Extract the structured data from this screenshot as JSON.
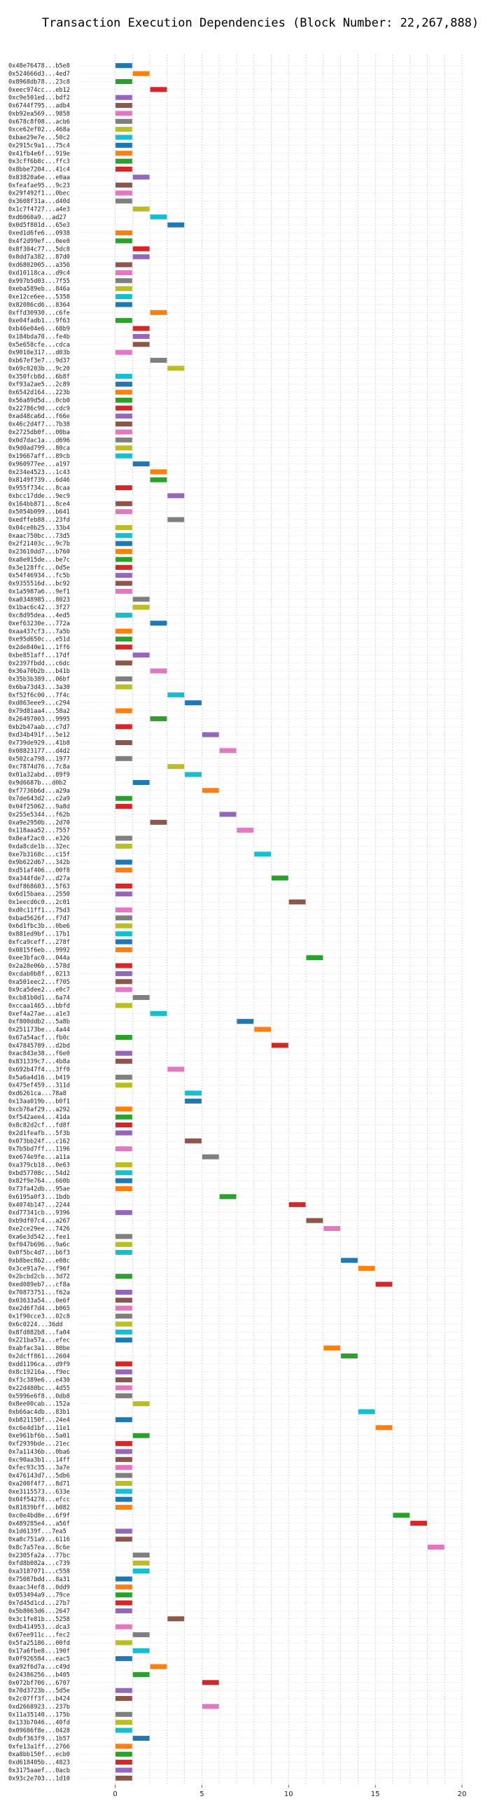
{
  "chart_data": {
    "type": "bar",
    "orientation": "horizontal-timeline",
    "title": "Transaction Execution Dependencies (Block Number: 22,267,888)",
    "xlabel": "",
    "ylabel": "",
    "xlim": [
      -2,
      20
    ],
    "xticks": [
      0,
      5,
      10,
      15,
      20
    ],
    "grid": "dotted, both axes",
    "legend": "none",
    "palette": [
      "#1f77b4",
      "#ff7f0e",
      "#2ca02c",
      "#d62728",
      "#9467bd",
      "#8c564b",
      "#e377c2",
      "#7f7f7f",
      "#bcbd22",
      "#17becf"
    ],
    "rows": [
      {
        "tx": "0x48e76478...b5e8",
        "start": 0,
        "end": 1
      },
      {
        "tx": "0x524666d3...4ed7",
        "start": 1,
        "end": 2
      },
      {
        "tx": "0x8968db78...23c8",
        "start": 0,
        "end": 1
      },
      {
        "tx": "0xeec974cc...eb12",
        "start": 2,
        "end": 3
      },
      {
        "tx": "0xc9e501ed...bdf2",
        "start": 0,
        "end": 1
      },
      {
        "tx": "0x6744f795...adb4",
        "start": 0,
        "end": 1
      },
      {
        "tx": "0xb92ea569...9858",
        "start": 0,
        "end": 1
      },
      {
        "tx": "0x678c8f08...acb6",
        "start": 0,
        "end": 1
      },
      {
        "tx": "0xce62ef02...468a",
        "start": 0,
        "end": 1
      },
      {
        "tx": "0xbae29e7e...50c2",
        "start": 0,
        "end": 1
      },
      {
        "tx": "0x2915c9a1...75c4",
        "start": 0,
        "end": 1
      },
      {
        "tx": "0x41fb4e6f...919e",
        "start": 0,
        "end": 1
      },
      {
        "tx": "0x3cff6b8c...ffc3",
        "start": 0,
        "end": 1
      },
      {
        "tx": "0x8bbe7204...41c4",
        "start": 0,
        "end": 1
      },
      {
        "tx": "0x83820a6e...e0aa",
        "start": 1,
        "end": 2
      },
      {
        "tx": "0xfeafae95...9c23",
        "start": 0,
        "end": 1
      },
      {
        "tx": "0x29f492f1...0bec",
        "start": 0,
        "end": 1
      },
      {
        "tx": "0x3608f31a...d40d",
        "start": 0,
        "end": 1
      },
      {
        "tx": "0x1c7f4727...a4e3",
        "start": 1,
        "end": 2
      },
      {
        "tx": "0xd6060a9...ad27",
        "start": 2,
        "end": 3
      },
      {
        "tx": "0x0d5f801d...65e3",
        "start": 3,
        "end": 4
      },
      {
        "tx": "0xed1d6fe6...0938",
        "start": 0,
        "end": 1
      },
      {
        "tx": "0x4f2d99ef...0ee0",
        "start": 0,
        "end": 1
      },
      {
        "tx": "0x8f304c77...5dc8",
        "start": 1,
        "end": 2
      },
      {
        "tx": "0x8dd7a382...87d0",
        "start": 1,
        "end": 2
      },
      {
        "tx": "0xd6802005...a356",
        "start": 0,
        "end": 1
      },
      {
        "tx": "0xd10118ca...d9c4",
        "start": 0,
        "end": 1
      },
      {
        "tx": "0x997b5d03...7f55",
        "start": 0,
        "end": 1
      },
      {
        "tx": "0xeba589eb...846a",
        "start": 0,
        "end": 1
      },
      {
        "tx": "0xe12ce6ee...5358",
        "start": 0,
        "end": 1
      },
      {
        "tx": "0x82086cd6...8364",
        "start": 0,
        "end": 1
      },
      {
        "tx": "0xffd30930...c6fe",
        "start": 2,
        "end": 3
      },
      {
        "tx": "0xe04fadb1...9f63",
        "start": 0,
        "end": 1
      },
      {
        "tx": "0xb46e04e6...68b9",
        "start": 1,
        "end": 2
      },
      {
        "tx": "0x184bda70...fe4b",
        "start": 1,
        "end": 2
      },
      {
        "tx": "0x5e658cfe...cdca",
        "start": 1,
        "end": 2
      },
      {
        "tx": "0x9010e317...d03b",
        "start": 0,
        "end": 1
      },
      {
        "tx": "0xb67ef3e7...9d37",
        "start": 2,
        "end": 3
      },
      {
        "tx": "0x69c0203b...9c20",
        "start": 3,
        "end": 4
      },
      {
        "tx": "0x350fcb8d...6b8f",
        "start": 0,
        "end": 1
      },
      {
        "tx": "0xf93a2ae5...2c89",
        "start": 0,
        "end": 1
      },
      {
        "tx": "0x6542d164...223b",
        "start": 0,
        "end": 1
      },
      {
        "tx": "0x56a89d5d...0cb0",
        "start": 0,
        "end": 1
      },
      {
        "tx": "0x22786c90...cdc9",
        "start": 0,
        "end": 1
      },
      {
        "tx": "0xad48ca6d...f66e",
        "start": 0,
        "end": 1
      },
      {
        "tx": "0x46c2d4f7...7b38",
        "start": 0,
        "end": 1
      },
      {
        "tx": "0x2725db0f...00ba",
        "start": 0,
        "end": 1
      },
      {
        "tx": "0x0d7dac1a...d696",
        "start": 0,
        "end": 1
      },
      {
        "tx": "0x9d0ad799...80ca",
        "start": 0,
        "end": 1
      },
      {
        "tx": "0x19667aff...89cb",
        "start": 0,
        "end": 1
      },
      {
        "tx": "0x960977ee...a197",
        "start": 1,
        "end": 2
      },
      {
        "tx": "0x234e4523...1c43",
        "start": 2,
        "end": 3
      },
      {
        "tx": "0x8149f739...6d46",
        "start": 2,
        "end": 3
      },
      {
        "tx": "0x955f734c...8caa",
        "start": 0,
        "end": 1
      },
      {
        "tx": "0xbcc17dde...9ec9",
        "start": 3,
        "end": 4
      },
      {
        "tx": "0x164bb871...8ce4",
        "start": 0,
        "end": 1
      },
      {
        "tx": "0x5054b099...b641",
        "start": 0,
        "end": 1
      },
      {
        "tx": "0xedffeb88...23fd",
        "start": 3,
        "end": 4
      },
      {
        "tx": "0x04ce0b25...33b4",
        "start": 0,
        "end": 1
      },
      {
        "tx": "0xaac750bc...73d5",
        "start": 0,
        "end": 1
      },
      {
        "tx": "0x2f21403c...9c7b",
        "start": 0,
        "end": 1
      },
      {
        "tx": "0x23610dd7...b760",
        "start": 0,
        "end": 1
      },
      {
        "tx": "0xa8e015de...be7c",
        "start": 0,
        "end": 1
      },
      {
        "tx": "0x3e128ffc...0d5e",
        "start": 0,
        "end": 1
      },
      {
        "tx": "0x54f46934...fc5b",
        "start": 0,
        "end": 1
      },
      {
        "tx": "0x9355516d...bc92",
        "start": 0,
        "end": 1
      },
      {
        "tx": "0x1a5987a6...9ef1",
        "start": 0,
        "end": 1
      },
      {
        "tx": "0xa0348985...8023",
        "start": 1,
        "end": 2
      },
      {
        "tx": "0x1bac6c42...3f27",
        "start": 1,
        "end": 2
      },
      {
        "tx": "0xc8d95dea...4ed5",
        "start": 0,
        "end": 1
      },
      {
        "tx": "0xef63230e...772a",
        "start": 2,
        "end": 3
      },
      {
        "tx": "0xaa437cf3...7a5b",
        "start": 0,
        "end": 1
      },
      {
        "tx": "0xe95d650c...e51d",
        "start": 0,
        "end": 1
      },
      {
        "tx": "0x2de840e1...1ff6",
        "start": 0,
        "end": 1
      },
      {
        "tx": "0xbe851aff...17df",
        "start": 1,
        "end": 2
      },
      {
        "tx": "0x2397fbdd...c6dc",
        "start": 0,
        "end": 1
      },
      {
        "tx": "0x36a70b2b...b41b",
        "start": 2,
        "end": 3
      },
      {
        "tx": "0x35b3b389...06bf",
        "start": 0,
        "end": 1
      },
      {
        "tx": "0x6ba73d43...3a30",
        "start": 0,
        "end": 1
      },
      {
        "tx": "0xf52f6c00...7f4c",
        "start": 3,
        "end": 4
      },
      {
        "tx": "0xd863eee9...c294",
        "start": 4,
        "end": 5
      },
      {
        "tx": "0x79d81aa4...58a2",
        "start": 0,
        "end": 1
      },
      {
        "tx": "0x26497003...9995",
        "start": 2,
        "end": 3
      },
      {
        "tx": "0xb2b47aab...c7d7",
        "start": 0,
        "end": 1
      },
      {
        "tx": "0xd34b491f...5e12",
        "start": 5,
        "end": 6
      },
      {
        "tx": "0x739de929...41b8",
        "start": 0,
        "end": 1
      },
      {
        "tx": "0x08823177...d4d2",
        "start": 6,
        "end": 7
      },
      {
        "tx": "0x502ca798...1977",
        "start": 0,
        "end": 1
      },
      {
        "tx": "0xc7874d76...7c8a",
        "start": 3,
        "end": 4
      },
      {
        "tx": "0x01a32abd...89f9",
        "start": 4,
        "end": 5
      },
      {
        "tx": "0x9d6687b...d0b2",
        "start": 1,
        "end": 2
      },
      {
        "tx": "0xf7736b6d...a29a",
        "start": 5,
        "end": 6
      },
      {
        "tx": "0x7de643d2...c2a9",
        "start": 0,
        "end": 1
      },
      {
        "tx": "0x04f25062...9a8d",
        "start": 0,
        "end": 1
      },
      {
        "tx": "0x255e5344...f62b",
        "start": 6,
        "end": 7
      },
      {
        "tx": "0xa9e2950b...2d70",
        "start": 2,
        "end": 3
      },
      {
        "tx": "0x118aaa52...7557",
        "start": 7,
        "end": 8
      },
      {
        "tx": "0x8eaf2ac0...e326",
        "start": 0,
        "end": 1
      },
      {
        "tx": "0xda8cde1b...32ec",
        "start": 0,
        "end": 1
      },
      {
        "tx": "0xe7b3168c...c15f",
        "start": 8,
        "end": 9
      },
      {
        "tx": "0x9b622d67...342b",
        "start": 0,
        "end": 1
      },
      {
        "tx": "0xd51af406...00f8",
        "start": 0,
        "end": 1
      },
      {
        "tx": "0xa344fde7...d27a",
        "start": 9,
        "end": 10
      },
      {
        "tx": "0xdf868603...5f63",
        "start": 0,
        "end": 1
      },
      {
        "tx": "0x6d15baea...2550",
        "start": 0,
        "end": 1
      },
      {
        "tx": "0x1eecd6c0...2c01",
        "start": 10,
        "end": 11
      },
      {
        "tx": "0xd0c11ff1...75d3",
        "start": 0,
        "end": 1
      },
      {
        "tx": "0xbad5626f...f7d7",
        "start": 0,
        "end": 1
      },
      {
        "tx": "0x6d1fbc3b...0be6",
        "start": 0,
        "end": 1
      },
      {
        "tx": "0x881ed9bf...17b1",
        "start": 0,
        "end": 1
      },
      {
        "tx": "0xfca9ceff...278f",
        "start": 0,
        "end": 1
      },
      {
        "tx": "0x0815f6eb...9992",
        "start": 0,
        "end": 1
      },
      {
        "tx": "0xee3bfac0...044a",
        "start": 11,
        "end": 12
      },
      {
        "tx": "0x2a28e06b...578d",
        "start": 0,
        "end": 1
      },
      {
        "tx": "0xcdab0b8f...0213",
        "start": 0,
        "end": 1
      },
      {
        "tx": "0xa501eec2...f705",
        "start": 0,
        "end": 1
      },
      {
        "tx": "0x9ca5dee2...e0c7",
        "start": 0,
        "end": 1
      },
      {
        "tx": "0xcb81b0d1...6a74",
        "start": 1,
        "end": 2
      },
      {
        "tx": "0xccaa1465...bbfd",
        "start": 0,
        "end": 1
      },
      {
        "tx": "0xef4a27ae...a1e3",
        "start": 2,
        "end": 3
      },
      {
        "tx": "0xf800ddb2...5a8b",
        "start": 7,
        "end": 8
      },
      {
        "tx": "0x251173be...4a44",
        "start": 8,
        "end": 9
      },
      {
        "tx": "0x67a54acf...fb0c",
        "start": 0,
        "end": 1
      },
      {
        "tx": "0x47845789...d2bd",
        "start": 9,
        "end": 10
      },
      {
        "tx": "0xac843e38...f6e0",
        "start": 0,
        "end": 1
      },
      {
        "tx": "0x831339c7...4b8a",
        "start": 0,
        "end": 1
      },
      {
        "tx": "0x692b47f4...3ff0",
        "start": 3,
        "end": 4
      },
      {
        "tx": "0x5a6a4d16...b419",
        "start": 0,
        "end": 1
      },
      {
        "tx": "0x475ef459...311d",
        "start": 0,
        "end": 1
      },
      {
        "tx": "0xd6261ca...78a8",
        "start": 4,
        "end": 5
      },
      {
        "tx": "0x13aa019b...b0f1",
        "start": 4,
        "end": 5
      },
      {
        "tx": "0xcb76af29...a292",
        "start": 0,
        "end": 1
      },
      {
        "tx": "0xf542aee4...41da",
        "start": 0,
        "end": 1
      },
      {
        "tx": "0x8c82d2cf...fd8f",
        "start": 0,
        "end": 1
      },
      {
        "tx": "0x2d1feafb...5f3b",
        "start": 0,
        "end": 1
      },
      {
        "tx": "0x073bb24f...c162",
        "start": 4,
        "end": 5
      },
      {
        "tx": "0x7b5bd7ff...1196",
        "start": 0,
        "end": 1
      },
      {
        "tx": "0xe674e9fe...a11a",
        "start": 5,
        "end": 6
      },
      {
        "tx": "0xa379cb18...0e63",
        "start": 0,
        "end": 1
      },
      {
        "tx": "0xbd57708c...54d2",
        "start": 0,
        "end": 1
      },
      {
        "tx": "0x82f9e764...660b",
        "start": 0,
        "end": 1
      },
      {
        "tx": "0x73fa42db...95ae",
        "start": 0,
        "end": 1
      },
      {
        "tx": "0x6195a0f3...1bdb",
        "start": 6,
        "end": 7
      },
      {
        "tx": "0x4074b147...2244",
        "start": 10,
        "end": 11
      },
      {
        "tx": "0xd77341cb...9396",
        "start": 0,
        "end": 1
      },
      {
        "tx": "0xb9df07c4...a267",
        "start": 11,
        "end": 12
      },
      {
        "tx": "0xe2ce29ee...7426",
        "start": 12,
        "end": 13
      },
      {
        "tx": "0xa6e3d542...fee1",
        "start": 0,
        "end": 1
      },
      {
        "tx": "0xf047b696...9a6c",
        "start": 0,
        "end": 1
      },
      {
        "tx": "0x0f5bc4d7...b6f3",
        "start": 0,
        "end": 1
      },
      {
        "tx": "0xb8bec862...e08c",
        "start": 13,
        "end": 14
      },
      {
        "tx": "0x3ce91a7e...f96f",
        "start": 14,
        "end": 15
      },
      {
        "tx": "0x2bcbd2cb...3d72",
        "start": 0,
        "end": 1
      },
      {
        "tx": "0xed089eb7...cf8a",
        "start": 15,
        "end": 16
      },
      {
        "tx": "0x70873751...f62a",
        "start": 0,
        "end": 1
      },
      {
        "tx": "0x03633a54...0e6f",
        "start": 0,
        "end": 1
      },
      {
        "tx": "0xe2d6f7d4...b065",
        "start": 0,
        "end": 1
      },
      {
        "tx": "0x1f90cce3...02c8",
        "start": 0,
        "end": 1
      },
      {
        "tx": "0x6c0224...36dd",
        "start": 0,
        "end": 1
      },
      {
        "tx": "0x8fd882b8...fa04",
        "start": 0,
        "end": 1
      },
      {
        "tx": "0x221ba57a...efec",
        "start": 0,
        "end": 1
      },
      {
        "tx": "0xabfac3a1...80be",
        "start": 12,
        "end": 13
      },
      {
        "tx": "0x2dcff861...2604",
        "start": 13,
        "end": 14
      },
      {
        "tx": "0xdd1196ca...d9f9",
        "start": 0,
        "end": 1
      },
      {
        "tx": "0x8c19216a...f9ec",
        "start": 0,
        "end": 1
      },
      {
        "tx": "0xf3c389e6...e430",
        "start": 0,
        "end": 1
      },
      {
        "tx": "0x22d480bc...4d55",
        "start": 0,
        "end": 1
      },
      {
        "tx": "0x5996e6f8...0db8",
        "start": 0,
        "end": 1
      },
      {
        "tx": "0x8ee00cab...152a",
        "start": 1,
        "end": 2
      },
      {
        "tx": "0xb66ac4db...83b1",
        "start": 14,
        "end": 15
      },
      {
        "tx": "0xb821150f...24e4",
        "start": 0,
        "end": 1
      },
      {
        "tx": "0xc6e4d1bf...11e1",
        "start": 15,
        "end": 16
      },
      {
        "tx": "0xe961bf6b...5a01",
        "start": 1,
        "end": 2
      },
      {
        "tx": "0xf2939bde...21ec",
        "start": 0,
        "end": 1
      },
      {
        "tx": "0x7a11436b...0ba6",
        "start": 0,
        "end": 1
      },
      {
        "tx": "0xc90aa3b1...14ff",
        "start": 0,
        "end": 1
      },
      {
        "tx": "0xfec93c35...3a7e",
        "start": 0,
        "end": 1
      },
      {
        "tx": "0x476143d7...5db6",
        "start": 0,
        "end": 1
      },
      {
        "tx": "0xa200f4f7...8d71",
        "start": 0,
        "end": 1
      },
      {
        "tx": "0xe3115573...633e",
        "start": 0,
        "end": 1
      },
      {
        "tx": "0x04f54278...efcc",
        "start": 0,
        "end": 1
      },
      {
        "tx": "0x81839bff...b082",
        "start": 0,
        "end": 1
      },
      {
        "tx": "0xc0e4bd8e...6f9f",
        "start": 16,
        "end": 17
      },
      {
        "tx": "0x489285e4...a56f",
        "start": 17,
        "end": 18
      },
      {
        "tx": "0x1d6139f...7ea5",
        "start": 0,
        "end": 1
      },
      {
        "tx": "0xa8c751a9...6116",
        "start": 0,
        "end": 1
      },
      {
        "tx": "0x8c7a57ea...8c6e",
        "start": 18,
        "end": 19
      },
      {
        "tx": "0x2305fa2a...77bc",
        "start": 1,
        "end": 2
      },
      {
        "tx": "0xfd8b082a...c739",
        "start": 1,
        "end": 2
      },
      {
        "tx": "0xa3187071...c558",
        "start": 1,
        "end": 2
      },
      {
        "tx": "0x75087bdd...8a31",
        "start": 0,
        "end": 1
      },
      {
        "tx": "0xaac34ef8...0dd9",
        "start": 0,
        "end": 1
      },
      {
        "tx": "0x053494a9...79ce",
        "start": 0,
        "end": 1
      },
      {
        "tx": "0x7d45d1cd...27b7",
        "start": 0,
        "end": 1
      },
      {
        "tx": "0x5b8063d6...2647",
        "start": 0,
        "end": 1
      },
      {
        "tx": "0x3c1fe81b...5258",
        "start": 3,
        "end": 4
      },
      {
        "tx": "0xdb414953...dca3",
        "start": 0,
        "end": 1
      },
      {
        "tx": "0x67ee911c...fec2",
        "start": 1,
        "end": 2
      },
      {
        "tx": "0x5fa25186...00fd",
        "start": 0,
        "end": 1
      },
      {
        "tx": "0x17a6fbe8...190f",
        "start": 1,
        "end": 2
      },
      {
        "tx": "0x0f926584...eac5",
        "start": 0,
        "end": 1
      },
      {
        "tx": "0xa92f6d7a...c49d",
        "start": 2,
        "end": 3
      },
      {
        "tx": "0x24386256...b405",
        "start": 1,
        "end": 2
      },
      {
        "tx": "0x072bf706...6707",
        "start": 5,
        "end": 6
      },
      {
        "tx": "0x70d3723b...5d5e",
        "start": 0,
        "end": 1
      },
      {
        "tx": "0x2c07ff3f...b424",
        "start": 0,
        "end": 1
      },
      {
        "tx": "0xd2668923...237b",
        "start": 5,
        "end": 6
      },
      {
        "tx": "0x11a35140...175b",
        "start": 0,
        "end": 1
      },
      {
        "tx": "0x133b7046...40fd",
        "start": 0,
        "end": 1
      },
      {
        "tx": "0x09686f8e...0428",
        "start": 0,
        "end": 1
      },
      {
        "tx": "0xdbf363f9...1b57",
        "start": 1,
        "end": 2
      },
      {
        "tx": "0xfe13a1ff...2766",
        "start": 0,
        "end": 1
      },
      {
        "tx": "0xa8bb150f...ecb0",
        "start": 0,
        "end": 1
      },
      {
        "tx": "0xd618405b...4823",
        "start": 0,
        "end": 1
      },
      {
        "tx": "0x3175aaef...0acb",
        "start": 0,
        "end": 1
      },
      {
        "tx": "0x93c2e703...1d10",
        "start": 0,
        "end": 1
      }
    ]
  }
}
